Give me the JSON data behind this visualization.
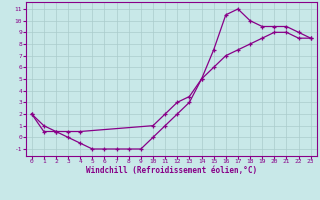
{
  "xlabel": "Windchill (Refroidissement éolien,°C)",
  "background_color": "#c8e8e8",
  "line_color": "#880088",
  "grid_color": "#aacccc",
  "xlim": [
    -0.5,
    23.5
  ],
  "ylim": [
    -1.6,
    11.6
  ],
  "xticks": [
    0,
    1,
    2,
    3,
    4,
    5,
    6,
    7,
    8,
    9,
    10,
    11,
    12,
    13,
    14,
    15,
    16,
    17,
    18,
    19,
    20,
    21,
    22,
    23
  ],
  "yticks": [
    -1,
    0,
    1,
    2,
    3,
    4,
    5,
    6,
    7,
    8,
    9,
    10,
    11
  ],
  "series": [
    {
      "x": [
        0,
        1,
        2,
        3,
        4,
        5,
        6,
        7,
        8,
        9,
        10,
        11,
        12,
        13,
        14,
        15,
        16,
        17,
        18,
        19,
        20,
        21,
        22,
        23
      ],
      "y": [
        2,
        1,
        0.5,
        0,
        -0.5,
        -1,
        -1,
        -1,
        -1,
        -1,
        0,
        1,
        2,
        3,
        5,
        7.5,
        10.5,
        11,
        10,
        9.5,
        9.5,
        9.5,
        9,
        8.5
      ]
    },
    {
      "x": [
        0,
        1,
        2,
        3,
        4,
        10,
        11,
        12,
        13,
        14,
        15,
        16,
        17,
        18,
        19,
        20,
        21,
        22,
        23
      ],
      "y": [
        2,
        0.5,
        0.5,
        0.5,
        0.5,
        1,
        2,
        3,
        3.5,
        5,
        6,
        7,
        7.5,
        8,
        8.5,
        9,
        9,
        8.5,
        8.5
      ]
    }
  ]
}
